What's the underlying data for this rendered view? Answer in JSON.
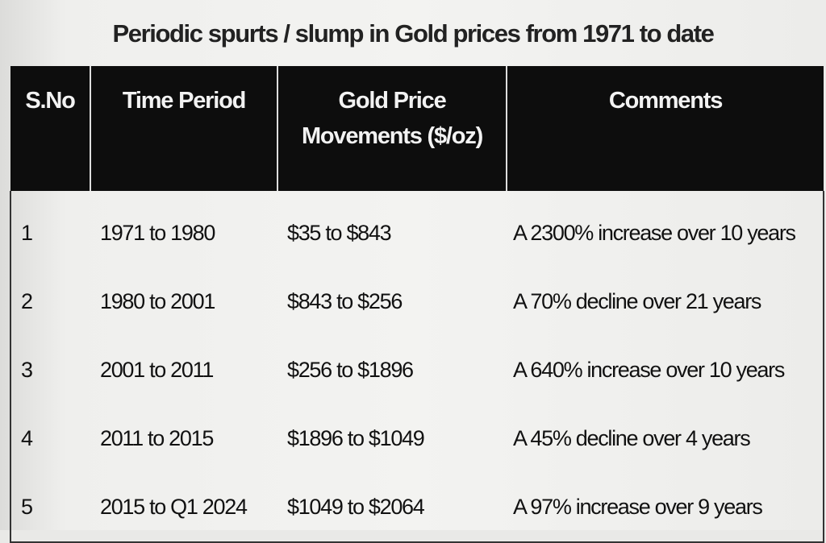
{
  "title": "Periodic spurts / slump in Gold prices from 1971 to date",
  "table": {
    "headers": [
      "S.No",
      "Time Period",
      "Gold Price",
      "Movements ($/oz)",
      "Comments"
    ],
    "rows": [
      {
        "sno": "1",
        "period": "1971 to 1980",
        "movement": "$35 to $843",
        "comment": "A 2300% increase over 10 years"
      },
      {
        "sno": "2",
        "period": "1980 to 2001",
        "movement": "$843 to $256",
        "comment": "A 70% decline over 21 years"
      },
      {
        "sno": "3",
        "period": "2001 to 2011",
        "movement": "$256 to $1896",
        "comment": "A 640% increase over 10 years"
      },
      {
        "sno": "4",
        "period": "2011 to 2015",
        "movement": "$1896 to $1049",
        "comment": "A 45% decline over 4 years"
      },
      {
        "sno": "5",
        "period": "2015 to Q1 2024",
        "movement": "$1049 to $2064",
        "comment": "A 97% increase over 9 years"
      }
    ]
  },
  "colors": {
    "header_bg": "#0d0d0d",
    "header_text": "#f2f2f2",
    "paper": "#f0f0ee"
  }
}
